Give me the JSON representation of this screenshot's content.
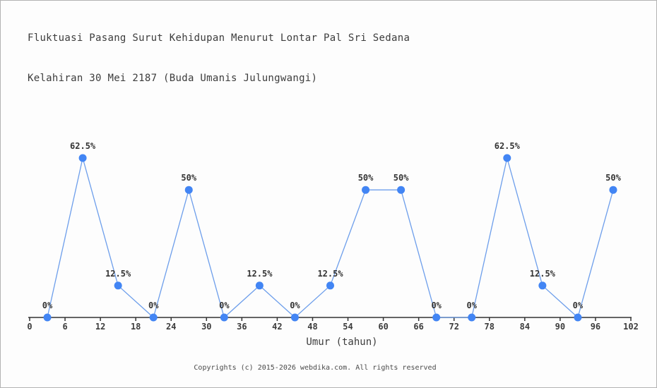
{
  "chart_data": {
    "type": "line",
    "title_line1": "Fluktuasi Pasang Surut Kehidupan Menurut Lontar Pal Sri Sedana",
    "title_line2": "Kelahiran 30 Mei 2187 (Buda Umanis Julungwangi)",
    "xlabel": "Umur (tahun)",
    "ylabel": "",
    "x": [
      3,
      9,
      15,
      21,
      27,
      33,
      39,
      45,
      51,
      57,
      63,
      69,
      75,
      81,
      87,
      93,
      99
    ],
    "values": [
      0,
      62.5,
      12.5,
      0,
      50,
      0,
      12.5,
      0,
      12.5,
      50,
      50,
      0,
      0,
      62.5,
      12.5,
      0,
      50
    ],
    "point_labels": [
      "0%",
      "62.5%",
      "12.5%",
      "0%",
      "50%",
      "0%",
      "12.5%",
      "0%",
      "12.5%",
      "50%",
      "50%",
      "0%",
      "0%",
      "62.5%",
      "12.5%",
      "0%",
      "50%"
    ],
    "x_ticks": [
      0,
      6,
      12,
      18,
      24,
      30,
      36,
      42,
      48,
      54,
      60,
      66,
      72,
      78,
      84,
      90,
      96,
      102
    ],
    "xlim": [
      0,
      102
    ],
    "ylim": [
      0,
      70
    ],
    "grid": false,
    "legend": false,
    "colors": {
      "marker": "#4285f4",
      "line": "#6d9eeb",
      "axis": "#333333",
      "point_label": "#333333",
      "tick_label": "#3c3c3c",
      "axis_label": "#3c3c3c"
    }
  },
  "footer": {
    "text": "Copyrights (c) 2015-2026 webdika.com. All rights reserved"
  }
}
